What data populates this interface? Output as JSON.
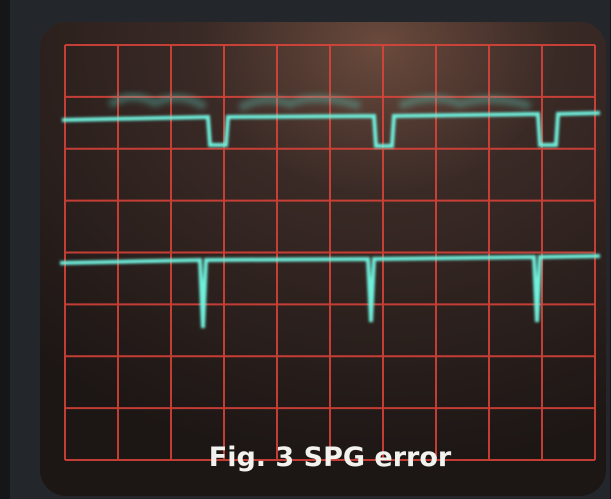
{
  "caption": "Fig. 3 SPG error"
}
